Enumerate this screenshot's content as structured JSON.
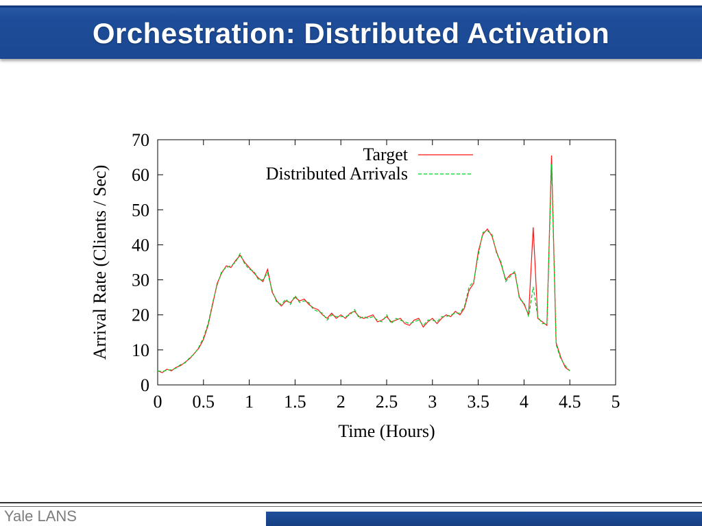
{
  "slide": {
    "title": "Orchestration: Distributed Activation",
    "footer_text": "Yale LANS",
    "accent_color": "#1E4D99"
  },
  "chart_data": {
    "type": "line",
    "title": "",
    "xlabel": "Time (Hours)",
    "ylabel": "Arrival Rate (Clients / Sec)",
    "xlim": [
      0,
      5
    ],
    "ylim": [
      0,
      70
    ],
    "x_ticks": [
      0,
      0.5,
      1,
      1.5,
      2,
      2.5,
      3,
      3.5,
      4,
      4.5,
      5
    ],
    "y_ticks": [
      0,
      10,
      20,
      30,
      40,
      50,
      60,
      70
    ],
    "grid": false,
    "legend_position": "top-center-inside",
    "x_start": 0,
    "x_step": 0.05,
    "series": [
      {
        "name": "Target",
        "color": "#ff1111",
        "style": "solid",
        "values": [
          4,
          3.5,
          4.5,
          4,
          5,
          5.5,
          6.5,
          7.5,
          9,
          10.5,
          13,
          17,
          23,
          29,
          32,
          34,
          33.5,
          35.5,
          37,
          35,
          33.5,
          32,
          30.5,
          29.5,
          33,
          26.5,
          24,
          22.5,
          24,
          23.5,
          25,
          24,
          24.5,
          23,
          22,
          21.5,
          20,
          19,
          20.5,
          19,
          20,
          19,
          20.5,
          21,
          19.5,
          19,
          19.5,
          20,
          18,
          18.5,
          19.5,
          18,
          18.5,
          19,
          17.5,
          17,
          18.5,
          19,
          16.5,
          18,
          19,
          17.5,
          19,
          20,
          19.5,
          21,
          20,
          22,
          27,
          29,
          38,
          43,
          44.5,
          42.5,
          38,
          34.5,
          30,
          31.5,
          32,
          25,
          23,
          20,
          45,
          19,
          18,
          17,
          65.5,
          12,
          8,
          5,
          4
        ]
      },
      {
        "name": "Distributed Arrivals",
        "color": "#00cc22",
        "style": "dashed",
        "values": [
          4,
          3.8,
          4.2,
          4.3,
          4.8,
          5.8,
          6.3,
          7.8,
          8.8,
          10.8,
          13.5,
          17.5,
          23.5,
          28.5,
          32.5,
          33.5,
          34,
          35,
          37.5,
          34.5,
          33,
          32.5,
          30,
          30,
          32,
          27,
          23.5,
          23,
          24.5,
          23,
          25.5,
          23.5,
          24,
          23.5,
          21.5,
          21,
          20.5,
          18.5,
          20,
          19.5,
          19.5,
          19.5,
          20,
          21.5,
          19,
          19.5,
          19,
          19.5,
          18.5,
          18,
          20,
          17.5,
          19,
          18.5,
          18,
          17.5,
          18,
          18.5,
          17,
          18.5,
          18.5,
          18,
          19.5,
          19.5,
          20,
          20.5,
          20.5,
          22.5,
          28,
          29.5,
          37,
          43.5,
          44,
          43,
          37.5,
          35,
          29.5,
          31,
          32.5,
          24.5,
          23.5,
          19.5,
          28,
          19.5,
          17.5,
          17.5,
          63,
          11.5,
          7.5,
          5.5,
          4
        ]
      }
    ]
  }
}
